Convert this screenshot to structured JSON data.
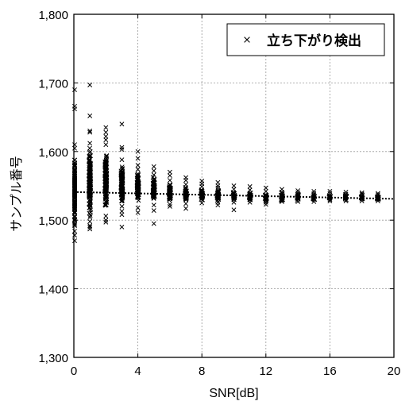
{
  "chart_data": {
    "type": "scatter",
    "xlabel": "SNR[dB]",
    "ylabel": "サンプル番号",
    "xlim": [
      0,
      20
    ],
    "ylim": [
      1300,
      1800
    ],
    "xticks": [
      0,
      4,
      8,
      12,
      16,
      20
    ],
    "yticks": [
      1300,
      1400,
      1500,
      1600,
      1700,
      1800
    ],
    "xtick_labels": [
      "0",
      "4",
      "8",
      "12",
      "16",
      "20"
    ],
    "ytick_labels": [
      "1,300",
      "1,400",
      "1,500",
      "1,600",
      "1,700",
      "1,800"
    ],
    "grid": true,
    "legend": {
      "position": "top-right",
      "entries": [
        "立ち下がり検出"
      ]
    },
    "series": [
      {
        "name": "立ち下がり検出",
        "marker": "x",
        "color": "#000000",
        "clusters": [
          {
            "x": 0,
            "core": [
              1478,
              1610
            ],
            "outliers": [
              1470,
              1478,
              1484,
              1492,
              1500,
              1662,
              1666,
              1690
            ]
          },
          {
            "x": 1,
            "core": [
              1498,
              1612
            ],
            "outliers": [
              1487,
              1490,
              1492,
              1628,
              1630,
              1652,
              1697
            ]
          },
          {
            "x": 2,
            "core": [
              1506,
              1610
            ],
            "outliers": [
              1497,
              1500,
              1617,
              1622,
              1628,
              1635
            ]
          },
          {
            "x": 3,
            "core": [
              1513,
              1588
            ],
            "outliers": [
              1490,
              1508,
              1603,
              1606,
              1640
            ]
          },
          {
            "x": 4,
            "core": [
              1518,
              1574
            ],
            "outliers": [
              1511,
              1580,
              1590,
              1600
            ]
          },
          {
            "x": 5,
            "core": [
              1522,
              1566
            ],
            "outliers": [
              1495,
              1514,
              1572,
              1578
            ]
          },
          {
            "x": 6,
            "core": [
              1523,
              1558
            ],
            "outliers": [
              1520,
              1565,
              1570
            ]
          },
          {
            "x": 7,
            "core": [
              1524,
              1552
            ],
            "outliers": [
              1517,
              1558,
              1562
            ]
          },
          {
            "x": 8,
            "core": [
              1525,
              1549
            ],
            "outliers": [
              1553,
              1557
            ]
          },
          {
            "x": 9,
            "core": [
              1526,
              1547
            ],
            "outliers": [
              1522,
              1550,
              1555
            ]
          },
          {
            "x": 10,
            "core": [
              1526,
              1545
            ],
            "outliers": [
              1515,
              1550
            ]
          },
          {
            "x": 11,
            "core": [
              1526,
              1544
            ],
            "outliers": [
              1549
            ]
          },
          {
            "x": 12,
            "core": [
              1526,
              1542
            ],
            "outliers": [
              1523,
              1547
            ]
          },
          {
            "x": 13,
            "core": [
              1527,
              1541
            ],
            "outliers": [
              1545
            ]
          },
          {
            "x": 14,
            "core": [
              1527,
              1540
            ],
            "outliers": [
              1543
            ]
          },
          {
            "x": 15,
            "core": [
              1527,
              1539
            ],
            "outliers": [
              1542
            ]
          },
          {
            "x": 16,
            "core": [
              1528,
              1539
            ],
            "outliers": [
              1542
            ]
          },
          {
            "x": 17,
            "core": [
              1528,
              1538
            ],
            "outliers": [
              1541
            ]
          },
          {
            "x": 18,
            "core": [
              1528,
              1538
            ],
            "outliers": [
              1540
            ]
          },
          {
            "x": 19,
            "core": [
              1528,
              1537
            ],
            "outliers": [
              1539
            ]
          }
        ]
      }
    ],
    "reference_line": {
      "style": "dotted",
      "points": [
        [
          0,
          1541
        ],
        [
          20,
          1531
        ]
      ]
    }
  }
}
